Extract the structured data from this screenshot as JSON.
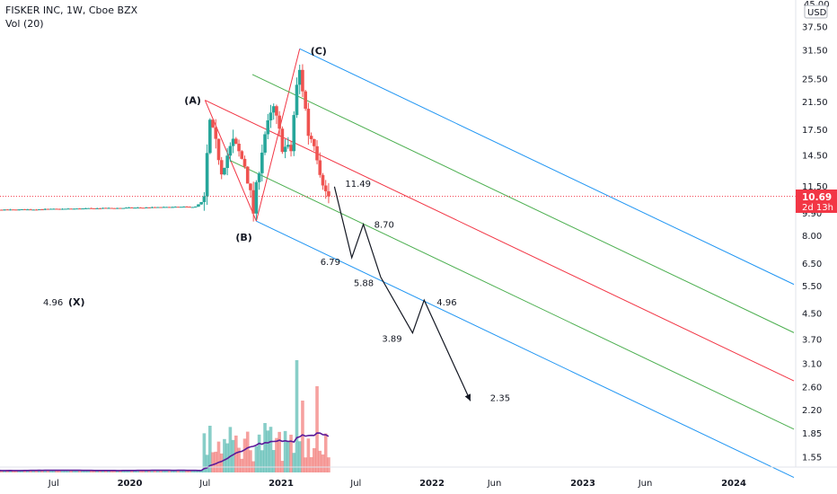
{
  "header": {
    "symbol_line": "FISKER INC, 1W, Cboe BZX",
    "volume_line": "Vol (20)"
  },
  "price_axis": {
    "currency": "USD",
    "last_price": "10.69",
    "countdown": "2d 13h",
    "top_label": "45.00",
    "partial_label": "9.90"
  },
  "chart_data": {
    "type": "candlestick",
    "scale": "log",
    "yticks": [
      37.5,
      31.5,
      25.5,
      21.5,
      17.5,
      14.5,
      11.5,
      8,
      6.5,
      5.5,
      4.5,
      3.7,
      3.1,
      2.6,
      2.2,
      1.85,
      1.55
    ],
    "ytick_labels": [
      "37.50",
      "31.50",
      "25.50",
      "21.50",
      "17.50",
      "14.50",
      "11.50",
      "8.00",
      "6.50",
      "5.50",
      "4.50",
      "3.70",
      "3.10",
      "2.60",
      "2.20",
      "1.85",
      "1.55"
    ],
    "xticks": [
      "Jul",
      "2020",
      "Jul",
      "2021",
      "Jul",
      "2022",
      "Jun",
      "2023",
      "Jun",
      "2024"
    ],
    "last_price": 10.69,
    "colors": {
      "up": "#26a69a",
      "down": "#ef5350",
      "accent_red": "#f23645",
      "price_line": "#f23645",
      "vol_ma": "#5b1a9a",
      "pitch_median": "#f23645",
      "pitch_inner": "#4caf50",
      "pitch_outer": "#2196f3"
    },
    "pivots": [
      {
        "label": "(A)",
        "date": "2020-07-01",
        "price": 21.8
      },
      {
        "label": "(B)",
        "date": "2020-11-02",
        "price": 8.9
      },
      {
        "label": "(C)",
        "date": "2021-02-15",
        "price": 31.9
      }
    ],
    "projection": [
      {
        "date": "2021-05-10",
        "price": 11.49,
        "label": "11.49"
      },
      {
        "date": "2021-06-21",
        "price": 6.79,
        "label": "6.79"
      },
      {
        "date": "2021-07-19",
        "price": 8.7,
        "label": "8.70"
      },
      {
        "date": "2021-08-30",
        "price": 5.88,
        "label": "5.88"
      },
      {
        "date": "2021-11-15",
        "price": 3.89,
        "label": "3.89"
      },
      {
        "date": "2021-12-13",
        "price": 4.96,
        "label": "4.96"
      },
      {
        "date": "2022-04-04",
        "price": 2.35,
        "label": "2.35"
      }
    ],
    "x_note": {
      "label": "(X)",
      "value": "4.96"
    }
  }
}
